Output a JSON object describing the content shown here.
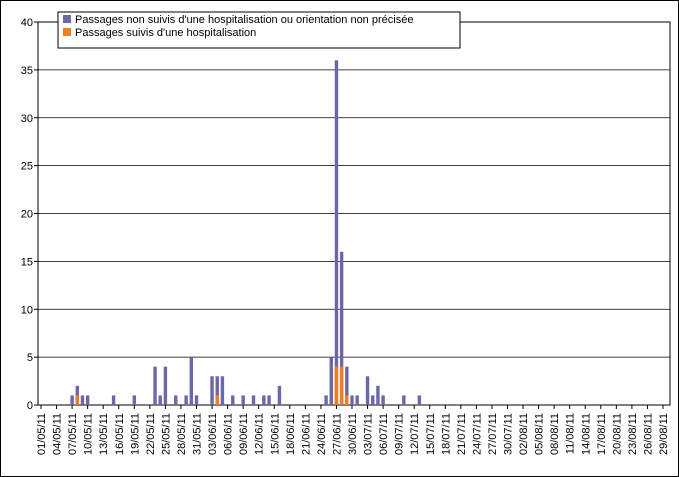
{
  "chart_data": {
    "type": "bar",
    "overlap": true,
    "categories": [
      "01/05/11",
      null,
      null,
      "04/05/11",
      null,
      null,
      "07/05/11",
      null,
      null,
      "10/05/11",
      null,
      null,
      "13/05/11",
      null,
      null,
      "16/05/11",
      null,
      null,
      "19/05/11",
      null,
      null,
      "22/05/11",
      null,
      null,
      "25/05/11",
      null,
      null,
      "28/05/11",
      null,
      null,
      "31/05/11",
      null,
      null,
      "03/06/11",
      null,
      null,
      "06/06/11",
      null,
      null,
      "09/06/11",
      null,
      null,
      "12/06/11",
      null,
      null,
      "15/06/11",
      null,
      null,
      "18/06/11",
      null,
      null,
      "21/06/11",
      null,
      null,
      "24/06/11",
      null,
      null,
      "27/06/11",
      null,
      null,
      "30/06/11",
      null,
      null,
      "03/07/11",
      null,
      null,
      "06/07/11",
      null,
      null,
      "09/07/11",
      null,
      null,
      "12/07/11",
      null,
      null,
      "15/07/11",
      null,
      null,
      "18/07/11",
      null,
      null,
      "21/07/11",
      null,
      null,
      "24/07/11",
      null,
      null,
      "27/07/11",
      null,
      null,
      "30/07/11",
      null,
      null,
      "02/08/11",
      null,
      null,
      "05/08/11",
      null,
      null,
      "08/08/11",
      null,
      null,
      "11/08/11",
      null,
      null,
      "14/08/11",
      null,
      null,
      "17/08/11",
      null,
      null,
      "20/08/11",
      null,
      null,
      "23/08/11",
      null,
      null,
      "26/08/11",
      null,
      null,
      "29/08/11"
    ],
    "series": [
      {
        "name": "Passages non suivis d'une hospitalisation ou orientation non précisée",
        "color": "#6b67a8",
        "values": [
          0,
          0,
          0,
          0,
          0,
          0,
          1,
          2,
          1,
          1,
          0,
          0,
          0,
          0,
          1,
          0,
          0,
          0,
          1,
          0,
          0,
          0,
          4,
          1,
          4,
          0,
          1,
          0,
          1,
          5,
          1,
          0,
          0,
          3,
          3,
          3,
          0,
          1,
          0,
          1,
          0,
          1,
          0,
          1,
          1,
          0,
          2,
          0,
          0,
          0,
          0,
          0,
          0,
          0,
          0,
          1,
          5,
          36,
          16,
          4,
          1,
          1,
          0,
          3,
          1,
          2,
          1,
          0,
          0,
          0,
          1,
          0,
          0,
          1,
          0,
          0,
          0,
          0,
          0,
          0,
          0,
          0,
          0,
          0,
          0,
          0,
          0,
          0,
          0,
          0,
          0,
          0,
          0,
          0,
          0,
          0,
          0,
          0,
          0,
          0,
          0,
          0,
          0,
          0,
          0,
          0,
          0,
          0,
          0,
          0,
          0,
          0,
          0,
          0,
          0,
          0,
          0,
          0,
          0,
          0,
          0
        ]
      },
      {
        "name": "Passages suivis d'une hospitalisation",
        "color": "#f47b20",
        "values": [
          0,
          0,
          0,
          0,
          0,
          0,
          0,
          1,
          0,
          0,
          0,
          0,
          0,
          0,
          0,
          0,
          0,
          0,
          0,
          0,
          0,
          0,
          0,
          0,
          0,
          0,
          0,
          0,
          0,
          0,
          0,
          0,
          0,
          0,
          1,
          0,
          0,
          0,
          0,
          0,
          0,
          0,
          0,
          0,
          0,
          0,
          0,
          0,
          0,
          0,
          0,
          0,
          0,
          0,
          0,
          0,
          0,
          4,
          4,
          1,
          0,
          0,
          0,
          0,
          0,
          0,
          0,
          0,
          0,
          0,
          0,
          0,
          0,
          0,
          0,
          0,
          0,
          0,
          0,
          0,
          0,
          0,
          0,
          0,
          0,
          0,
          0,
          0,
          0,
          0,
          0,
          0,
          0,
          0,
          0,
          0,
          0,
          0,
          0,
          0,
          0,
          0,
          0,
          0,
          0,
          0,
          0,
          0,
          0,
          0,
          0,
          0,
          0,
          0,
          0,
          0,
          0,
          0,
          0,
          0,
          0
        ]
      }
    ],
    "ylim": [
      0,
      40
    ],
    "yticks": [
      0,
      5,
      10,
      15,
      20,
      25,
      30,
      35,
      40
    ],
    "grid": true,
    "legend": "top-left"
  }
}
